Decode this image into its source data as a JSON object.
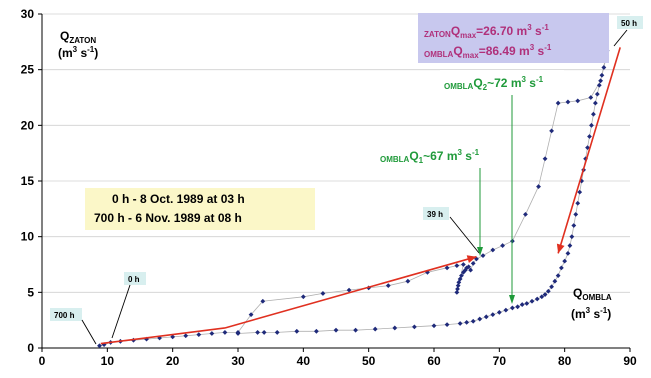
{
  "chart_data": {
    "type": "scatter",
    "xlim": [
      0,
      90
    ],
    "ylim": [
      0,
      30
    ],
    "x_ticks": [
      0,
      10,
      20,
      30,
      40,
      50,
      60,
      70,
      80,
      90
    ],
    "y_ticks": [
      0,
      5,
      10,
      15,
      20,
      25,
      30
    ],
    "grid": "horizontal",
    "ylabel": {
      "main": "Q",
      "sub": "ZATON",
      "unit_pre": "(m",
      "unit_exp1": "3",
      "unit_mid": " s",
      "unit_exp2": "-1",
      "unit_post": ")"
    },
    "xlabel": {
      "main": "Q",
      "sub": "OMBLA",
      "unit_pre": "(m",
      "unit_exp1": "3",
      "unit_mid": " s",
      "unit_exp2": "-1",
      "unit_post": ")"
    },
    "series": [
      {
        "marker_color": "#1f2a7a",
        "line_color": "#b0b0b0",
        "points": [
          [
            8.8,
            0.2
          ],
          [
            9.5,
            0.3
          ],
          [
            10.5,
            0.5
          ],
          [
            12,
            0.6
          ],
          [
            14,
            0.7
          ],
          [
            16,
            0.8
          ],
          [
            18,
            0.9
          ],
          [
            20,
            1.0
          ],
          [
            22,
            1.1
          ],
          [
            24,
            1.2
          ],
          [
            26,
            1.3
          ],
          [
            28,
            1.4
          ],
          [
            30,
            1.4
          ],
          [
            32,
            3.0
          ],
          [
            33.8,
            4.2
          ],
          [
            40,
            4.6
          ],
          [
            43,
            4.9
          ],
          [
            47,
            5.2
          ],
          [
            50,
            5.4
          ],
          [
            53,
            5.6
          ],
          [
            56,
            6.0
          ],
          [
            59,
            6.8
          ],
          [
            62,
            7.2
          ],
          [
            63.5,
            7.4
          ],
          [
            64.5,
            7.5
          ],
          [
            63.5,
            5.0
          ],
          [
            63.6,
            5.3
          ],
          [
            63.7,
            5.6
          ],
          [
            63.8,
            5.9
          ],
          [
            64.0,
            6.2
          ],
          [
            64.2,
            6.5
          ],
          [
            64.5,
            6.8
          ],
          [
            64.8,
            7.0
          ],
          [
            65,
            7.2
          ],
          [
            65.3,
            7.3
          ],
          [
            65.6,
            7.0
          ],
          [
            66,
            7.6
          ],
          [
            66.5,
            8.0
          ],
          [
            67.5,
            8.3
          ],
          [
            69,
            8.8
          ],
          [
            70.5,
            9.2
          ],
          [
            72,
            9.6
          ],
          [
            74,
            12.0
          ],
          [
            76,
            14.5
          ],
          [
            77,
            17.0
          ],
          [
            78,
            19.5
          ],
          [
            79,
            22.0
          ],
          [
            80.5,
            22.1
          ],
          [
            82,
            22.2
          ],
          [
            84,
            22.5
          ],
          [
            85.5,
            24.0
          ],
          [
            86.5,
            26.7
          ],
          [
            86.3,
            26.0
          ],
          [
            86.0,
            25.2
          ],
          [
            85.7,
            24.5
          ],
          [
            85.3,
            23.6
          ],
          [
            85.0,
            22.8
          ],
          [
            84.7,
            22.0
          ],
          [
            84.4,
            21.0
          ],
          [
            84.1,
            20.0
          ],
          [
            83.8,
            19.0
          ],
          [
            83.5,
            18.0
          ],
          [
            83.2,
            17.0
          ],
          [
            82.9,
            16.0
          ],
          [
            82.6,
            15.0
          ],
          [
            82.3,
            14.0
          ],
          [
            82.0,
            13.0
          ],
          [
            81.7,
            12.0
          ],
          [
            81.4,
            11.0
          ],
          [
            81.1,
            10.0
          ],
          [
            80.8,
            9.2
          ],
          [
            80.5,
            8.5
          ],
          [
            80.0,
            7.8
          ],
          [
            79.5,
            7.2
          ],
          [
            79.0,
            6.5
          ],
          [
            78.5,
            6.0
          ],
          [
            78.0,
            5.5
          ],
          [
            77.5,
            5.1
          ],
          [
            77.0,
            4.8
          ],
          [
            76.5,
            4.6
          ],
          [
            75.8,
            4.4
          ],
          [
            75.0,
            4.2
          ],
          [
            74.2,
            4.0
          ],
          [
            73.5,
            3.9
          ],
          [
            72.8,
            3.7
          ],
          [
            72.0,
            3.6
          ],
          [
            71.0,
            3.4
          ],
          [
            70.0,
            3.2
          ],
          [
            69.0,
            3.0
          ],
          [
            68.0,
            2.8
          ],
          [
            67.0,
            2.6
          ],
          [
            66.0,
            2.4
          ],
          [
            65.0,
            2.3
          ],
          [
            64.0,
            2.2
          ],
          [
            62.0,
            2.1
          ],
          [
            60.0,
            2.0
          ],
          [
            57.0,
            1.9
          ],
          [
            54.0,
            1.8
          ],
          [
            51.0,
            1.7
          ],
          [
            48.0,
            1.6
          ],
          [
            45.0,
            1.6
          ],
          [
            42.0,
            1.5
          ],
          [
            39.0,
            1.5
          ],
          [
            36.0,
            1.4
          ],
          [
            34.0,
            1.4
          ],
          [
            33.0,
            1.4
          ],
          [
            30.0,
            1.3
          ]
        ]
      }
    ],
    "arrows": [
      {
        "from": [
          9,
          0.4
        ],
        "to": [
          28,
          1.8
        ],
        "color": "#e03020"
      },
      {
        "from": [
          28,
          1.8
        ],
        "to": [
          66.5,
          8.2
        ],
        "color": "#e03020"
      },
      {
        "from": [
          88.5,
          27.0
        ],
        "to": [
          79,
          8.5
        ],
        "color": "#e03020"
      }
    ],
    "labels": {
      "h700": "700 h",
      "h0": "0 h",
      "h39": "39 h",
      "h50": "50 h",
      "date_line1": "0 h - 8 Oct. 1989 at 03 h",
      "date_line2": "700 h -  6 Nov. 1989 at 08 h",
      "q1": {
        "sub": "OMBLA",
        "main": "Q",
        "idx": "1",
        "val": "~67 m",
        "exp1": "3",
        "mid": " s",
        "exp2": "-1"
      },
      "q2": {
        "sub": "OMBLA",
        "main": "Q",
        "idx": "2",
        "val": "~72 m",
        "exp1": "3",
        "mid": " s",
        "exp2": "-1"
      },
      "qmax1": {
        "sub": "ZATON",
        "main": "Q",
        "idx": "max",
        "val": "=26.70 m",
        "exp1": "3",
        "mid": " s",
        "exp2": "-1"
      },
      "qmax2": {
        "sub": "OMBLA",
        "main": "Q",
        "idx": "max",
        "val": "=86.49 m",
        "exp1": "3",
        "mid": " s",
        "exp2": "-1"
      }
    },
    "colors": {
      "green": "#1f9a3a",
      "magenta": "#b0307a",
      "label_bg_blue": "#d8efef",
      "date_bg": "#fbf7c8",
      "qmax_bg": "#c8c8ee"
    }
  }
}
